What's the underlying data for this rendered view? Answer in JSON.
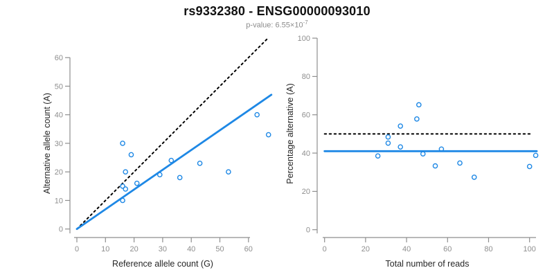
{
  "title": "rs9332380 - ENSG00000093010",
  "subtitle": {
    "label": "p-value: ",
    "base": "6.55×10",
    "exponent": "-7"
  },
  "colors": {
    "point_blue": "#1E88E5",
    "line_blue": "#1E88E5",
    "dotted_black": "#000000",
    "axis_gray": "#8E8E8E",
    "axis_label_dark": "#262626",
    "subtitle_gray": "#8C8C8C"
  },
  "chart_data": [
    {
      "type": "scatter",
      "name": "allele-count-plot",
      "xlabel": "Reference allele count (G)",
      "ylabel": "Alternative allele count (A)",
      "xticks": [
        0,
        10,
        20,
        30,
        40,
        50,
        60
      ],
      "yticks": [
        0,
        10,
        20,
        30,
        40,
        50,
        60
      ],
      "xlim": [
        0,
        68
      ],
      "ylim": [
        0,
        67
      ],
      "grid": false,
      "points": [
        [
          16,
          30
        ],
        [
          19,
          26
        ],
        [
          17,
          20
        ],
        [
          16,
          15
        ],
        [
          17,
          14
        ],
        [
          21,
          16
        ],
        [
          16,
          10
        ],
        [
          29,
          19
        ],
        [
          33,
          24
        ],
        [
          36,
          18
        ],
        [
          43,
          23
        ],
        [
          53,
          20
        ],
        [
          63,
          40
        ],
        [
          67,
          33
        ]
      ],
      "lines": [
        {
          "name": "identity-line",
          "style": "dotted",
          "color": "#000000",
          "x": [
            0,
            66.5
          ],
          "y": [
            0,
            66.5
          ]
        },
        {
          "name": "regression-line",
          "style": "solid",
          "color": "#1E88E5",
          "x": [
            0,
            68
          ],
          "y": [
            0,
            47
          ]
        }
      ]
    },
    {
      "type": "scatter",
      "name": "percentage-plot",
      "xlabel": "Total number of reads",
      "ylabel": "Percentage alternative (A)",
      "xticks": [
        0,
        20,
        40,
        60,
        80,
        100
      ],
      "yticks": [
        0,
        20,
        40,
        60,
        80,
        100
      ],
      "xlim": [
        0,
        104
      ],
      "ylim": [
        0,
        100
      ],
      "grid": false,
      "points": [
        [
          26,
          38.5
        ],
        [
          31,
          48.4
        ],
        [
          31,
          45.2
        ],
        [
          37,
          54.1
        ],
        [
          37,
          43.2
        ],
        [
          45,
          57.8
        ],
        [
          46,
          65.2
        ],
        [
          48,
          39.6
        ],
        [
          54,
          33.3
        ],
        [
          57,
          42.1
        ],
        [
          66,
          34.8
        ],
        [
          73,
          27.4
        ],
        [
          100,
          33.0
        ],
        [
          103,
          38.8
        ]
      ],
      "lines": [
        {
          "name": "fifty-percent-line",
          "style": "dotted",
          "color": "#000000",
          "x": [
            0,
            101
          ],
          "y": [
            50,
            50
          ]
        },
        {
          "name": "mean-percentage-line",
          "style": "solid",
          "color": "#1E88E5",
          "x": [
            0,
            103.5
          ],
          "y": [
            41,
            41
          ]
        }
      ]
    }
  ]
}
